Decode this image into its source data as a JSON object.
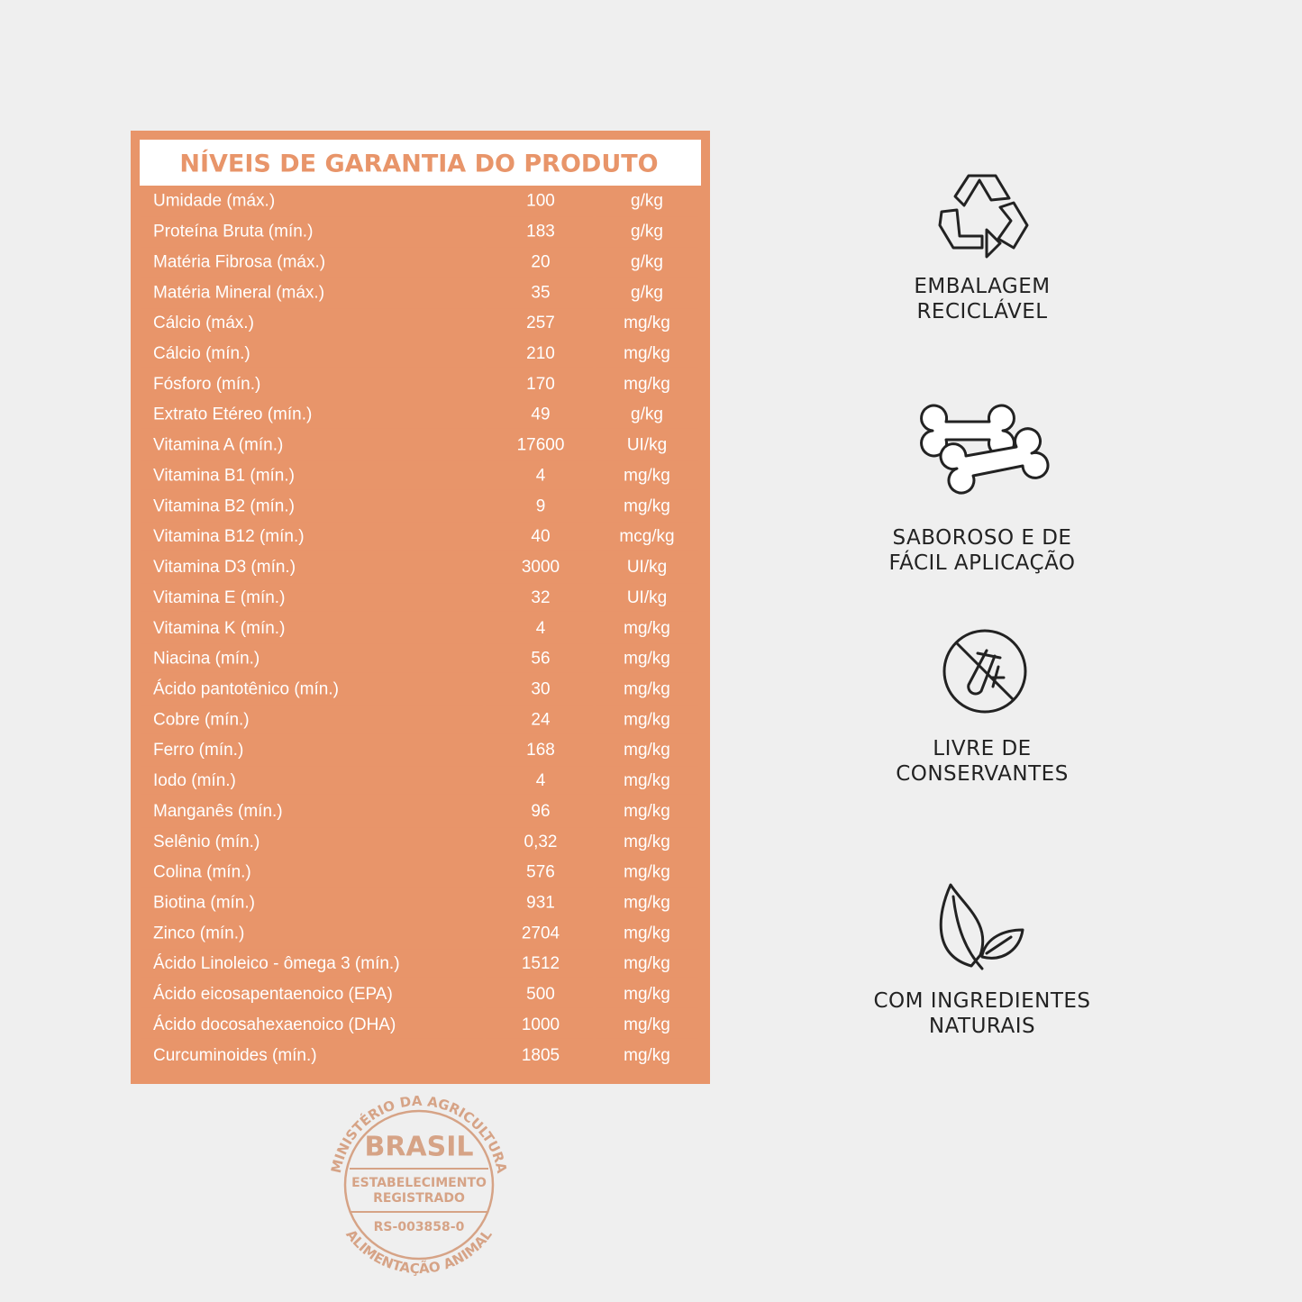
{
  "table": {
    "title": "NÍVEIS DE GARANTIA DO PRODUTO",
    "rows": [
      [
        "Umidade (máx.)",
        100,
        "g/kg"
      ],
      [
        "Proteína Bruta (mín.)",
        183,
        "g/kg"
      ],
      [
        "Matéria Fibrosa (máx.)",
        20,
        "g/kg"
      ],
      [
        "Matéria Mineral (máx.)",
        35,
        "g/kg"
      ],
      [
        "Cálcio (máx.)",
        257,
        "mg/kg"
      ],
      [
        "Cálcio (mín.)",
        210,
        "mg/kg"
      ],
      [
        "Fósforo (mín.)",
        170,
        "mg/kg"
      ],
      [
        "Extrato Etéreo (mín.)",
        49,
        "g/kg"
      ],
      [
        "Vitamina A (mín.)",
        17600,
        "UI/kg"
      ],
      [
        "Vitamina B1 (mín.)",
        4,
        "mg/kg"
      ],
      [
        "Vitamina B2 (mín.)",
        9,
        "mg/kg"
      ],
      [
        "Vitamina B12 (mín.)",
        40,
        "mcg/kg"
      ],
      [
        "Vitamina D3 (mín.)",
        3000,
        "UI/kg"
      ],
      [
        "Vitamina E (mín.)",
        32,
        "UI/kg"
      ],
      [
        "Vitamina K (mín.)",
        4,
        "mg/kg"
      ],
      [
        "Niacina (mín.)",
        56,
        "mg/kg"
      ],
      [
        "Ácido pantotênico (mín.)",
        30,
        "mg/kg"
      ],
      [
        "Cobre (mín.)",
        24,
        "mg/kg"
      ],
      [
        "Ferro (mín.)",
        168,
        "mg/kg"
      ],
      [
        "Iodo (mín.)",
        4,
        "mg/kg"
      ],
      [
        "Manganês (mín.)",
        96,
        "mg/kg"
      ],
      [
        "Selênio (mín.)",
        "0,32",
        "mg/kg"
      ],
      [
        "Colina (mín.)",
        576,
        "mg/kg"
      ],
      [
        "Biotina (mín.)",
        931,
        "mg/kg"
      ],
      [
        "Zinco (mín.)",
        2704,
        "mg/kg"
      ],
      [
        "Ácido Linoleico - ômega 3 (mín.)",
        1512,
        "mg/kg"
      ],
      [
        "Ácido eicosapentaenoico (EPA)",
        500,
        "mg/kg"
      ],
      [
        "Ácido docosahexaenoico (DHA)",
        1000,
        "mg/kg"
      ],
      [
        "Curcuminoides (mín.)",
        1805,
        "mg/kg"
      ]
    ]
  },
  "features": [
    {
      "lines": [
        "EMBALAGEM",
        "RECICLÁVEL"
      ]
    },
    {
      "lines": [
        "SABOROSO E DE",
        "FÁCIL APLICAÇÃO"
      ]
    },
    {
      "lines": [
        "LIVRE DE",
        "CONSERVANTES"
      ]
    },
    {
      "lines": [
        "COM INGREDIENTES",
        "NATURAIS"
      ]
    }
  ],
  "stamp": {
    "top": "MINISTÉRIO DA AGRICULTURA",
    "center": "BRASIL",
    "middle": [
      "ESTABELECIMENTO",
      "REGISTRADO"
    ],
    "code": "RS-003858-0",
    "bottom": "ALIMENTAÇÃO ANIMAL"
  }
}
